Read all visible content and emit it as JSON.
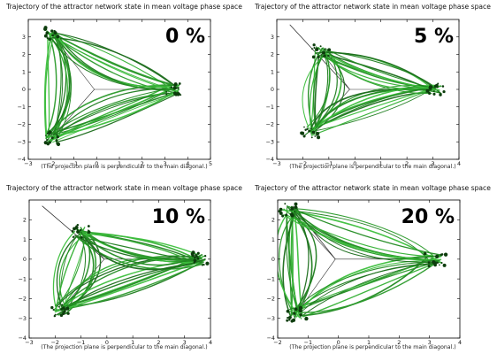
{
  "chart_data": [
    {
      "type": "line",
      "title": "Trajectory of the attractor network state in mean voltage phase space",
      "annotation": "0 %",
      "caption": "(The projection plane is perpendicular to the main diagonal.)",
      "xlim": [
        -3,
        5
      ],
      "ylim": [
        -4,
        4
      ],
      "xticks": [
        -3,
        -2,
        -1,
        0,
        1,
        2,
        3,
        4,
        5
      ],
      "yticks": [
        -4,
        -3,
        -2,
        -1,
        0,
        1,
        2,
        3
      ],
      "grid": false,
      "attractor_points": [
        [
          -2.0,
          3.2
        ],
        [
          -2.0,
          -2.8
        ],
        [
          3.4,
          0.0
        ]
      ],
      "center": [
        -0.1,
        0.0
      ],
      "line_color": "#2a9a2a",
      "diagonal_line": false
    },
    {
      "type": "line",
      "title": "Trajectory of the attractor network state in mean voltage phase space",
      "annotation": "5 %",
      "caption": "(The projection plane is perpendicular to the main diagonal.)",
      "xlim": [
        -3,
        4
      ],
      "ylim": [
        -4,
        4
      ],
      "xticks": [
        -3,
        -2,
        -1,
        0,
        1,
        2,
        3,
        4
      ],
      "yticks": [
        -4,
        -3,
        -2,
        -1,
        0,
        1,
        2,
        3
      ],
      "grid": false,
      "attractor_points": [
        [
          -1.3,
          2.2
        ],
        [
          -1.7,
          -2.4
        ],
        [
          3.1,
          0.0
        ]
      ],
      "center": [
        -0.2,
        0.0
      ],
      "line_color": "#2a9a2a",
      "diagonal_line": true
    },
    {
      "type": "line",
      "title": "Trajectory of the attractor network state in mean voltage phase space",
      "annotation": "10 %",
      "caption": "(The projection plane is perpendicular to the main diagonal.)",
      "xlim": [
        -3,
        4
      ],
      "ylim": [
        -4,
        3
      ],
      "xticks": [
        -3,
        -2,
        -1,
        0,
        1,
        2,
        3,
        4
      ],
      "yticks": [
        -4,
        -3,
        -2,
        -1,
        0,
        1,
        2
      ],
      "grid": false,
      "attractor_points": [
        [
          -1.0,
          1.4
        ],
        [
          -1.8,
          -2.6
        ],
        [
          3.6,
          0.0
        ]
      ],
      "center": [
        -0.1,
        0.0
      ],
      "line_color": "#2a9a2a",
      "diagonal_line": true
    },
    {
      "type": "line",
      "title": "Trajectory of the attractor network state in mean voltage phase space",
      "annotation": "20 %",
      "caption": "(The projection plane is perpendicular to the main diagonal.)",
      "xlim": [
        -2,
        4
      ],
      "ylim": [
        -4,
        3
      ],
      "xticks": [
        -2,
        -1,
        0,
        1,
        2,
        3,
        4
      ],
      "yticks": [
        -4,
        -3,
        -2,
        -1,
        0,
        1,
        2
      ],
      "grid": false,
      "attractor_points": [
        [
          -1.6,
          2.5
        ],
        [
          -1.4,
          -2.8
        ],
        [
          3.2,
          0.0
        ]
      ],
      "center": [
        -0.1,
        0.0
      ],
      "line_color": "#2a9a2a",
      "diagonal_line": true
    }
  ]
}
